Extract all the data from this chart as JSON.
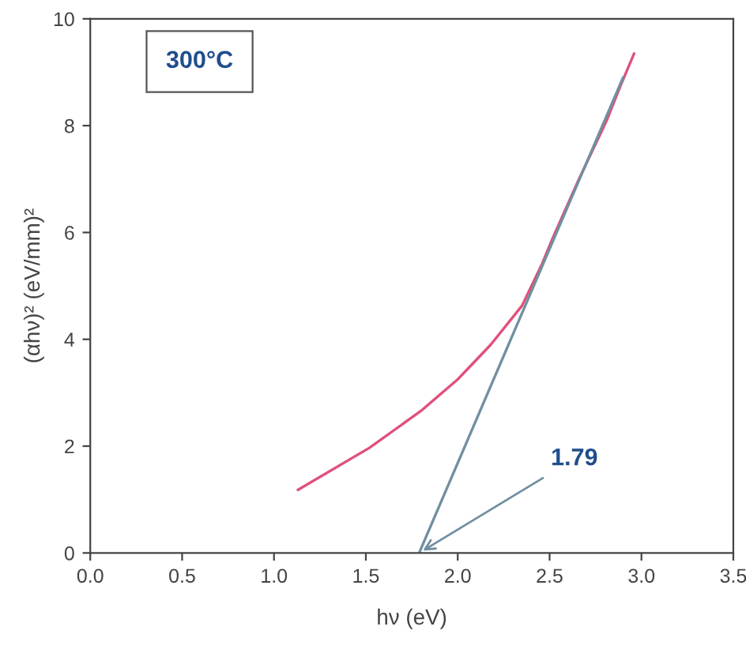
{
  "chart_data": {
    "type": "line",
    "xlabel": "hν (eV)",
    "ylabel": "(αhν)² (eV/mm)²",
    "series": [
      {
        "color": "#e0507a",
        "x": [
          1.13,
          1.52,
          1.8,
          2.0,
          2.18,
          2.35,
          2.46,
          2.52,
          2.66,
          2.81,
          2.89,
          2.96
        ],
        "values": [
          1.18,
          1.97,
          2.66,
          3.25,
          3.9,
          4.63,
          5.42,
          5.92,
          7.0,
          8.09,
          8.78,
          9.35
        ]
      },
      {
        "color": "#7090a0",
        "x": [
          1.79,
          2.9
        ],
        "values": [
          0,
          8.9
        ]
      }
    ],
    "annotations": [
      "300°C",
      {
        "text": "1.79",
        "x": 1.79,
        "y": 0
      }
    ],
    "xlim": [
      0,
      3.5
    ],
    "ylim": [
      0,
      10
    ],
    "xticks": [
      {
        "value": 0,
        "label": "0.0"
      },
      0.5,
      {
        "value": 1,
        "label": "1.0"
      },
      1.5,
      {
        "value": 2,
        "label": "2.0"
      },
      2.5,
      {
        "value": 3,
        "label": "3.0"
      },
      3.5
    ],
    "yticks": [
      0,
      2,
      4,
      6,
      8,
      10
    ],
    "grid": false,
    "legend": false,
    "marker": "none",
    "line_style": "solid"
  }
}
